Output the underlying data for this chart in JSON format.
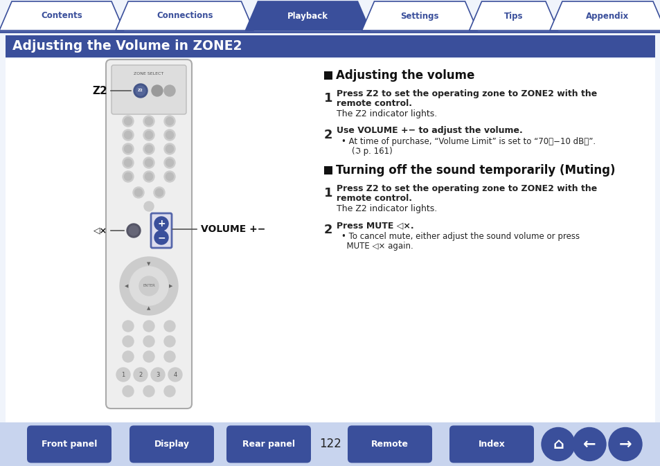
{
  "bg_color": "#f0f4fb",
  "white": "#ffffff",
  "tab_labels": [
    "Contents",
    "Connections",
    "Playback",
    "Settings",
    "Tips",
    "Appendix"
  ],
  "active_tab_idx": 2,
  "tab_bg_active": "#3a4f9b",
  "tab_bg_inactive": "#ffffff",
  "tab_text_active": "#ffffff",
  "tab_text_inactive": "#3a4f9b",
  "tab_border": "#3a4f9b",
  "header_line_color": "#3a4f9b",
  "section_bg": "#3a4f9b",
  "section_text": "#ffffff",
  "section_label": "Adjusting the Volume in ZONE2",
  "subsec1": "Adjusting the volume",
  "subsec2": "Turning off the sound temporarily (Muting)",
  "s1_step1_bold": "Press Z2 to set the operating zone to ZONE2 with the remote control.",
  "s1_step1_normal": "The Z2 indicator lights.",
  "s1_step2_bold": "Use VOLUME +− to adjust the volume.",
  "s1_step2_bullet1": "• At time of purchase, “Volume Limit” is set to “70（−10 dB）”.",
  "s1_step2_bullet2": "    (ℑ p. 161)",
  "s2_step1_bold": "Press Z2 to set the operating zone to ZONE2 with the remote control.",
  "s2_step1_normal": "The Z2 indicator lights.",
  "s2_step2_bold": "Press MUTE ◁×.",
  "s2_step2_bullet1": "• To cancel mute, either adjust the sound volume or press",
  "s2_step2_bullet2": "  MUTE ◁× again.",
  "footer_bg": "#c8d4ee",
  "footer_btns": [
    "Front panel",
    "Display",
    "Rear panel",
    "Remote",
    "Index"
  ],
  "footer_btn_color": "#3a4f9b",
  "footer_page": "122",
  "remote_bg": "#e8e8e8",
  "remote_border": "#999999",
  "btn_color": "#cccccc",
  "btn_dark": "#555566",
  "vol_color": "#4455aa",
  "z2_label": "Z2",
  "vol_label": "VOLUME +−",
  "mute_sym": "◁×"
}
